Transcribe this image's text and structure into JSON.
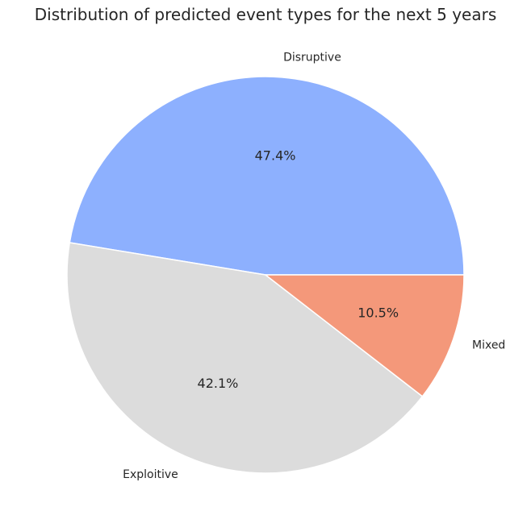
{
  "chart_data": {
    "type": "pie",
    "title": "Distribution of predicted event types for the next 5 years",
    "slices": [
      {
        "label": "Disruptive",
        "value": 47.4,
        "pct_label": "47.4%",
        "color": "#8db0fe"
      },
      {
        "label": "Exploitive",
        "value": 42.1,
        "pct_label": "42.1%",
        "color": "#dcdcdc"
      },
      {
        "label": "Mixed",
        "value": 10.5,
        "pct_label": "10.5%",
        "color": "#f4987a"
      }
    ],
    "start_angle": 0,
    "direction": "counterclockwise",
    "edge_color": "#ffffff"
  }
}
